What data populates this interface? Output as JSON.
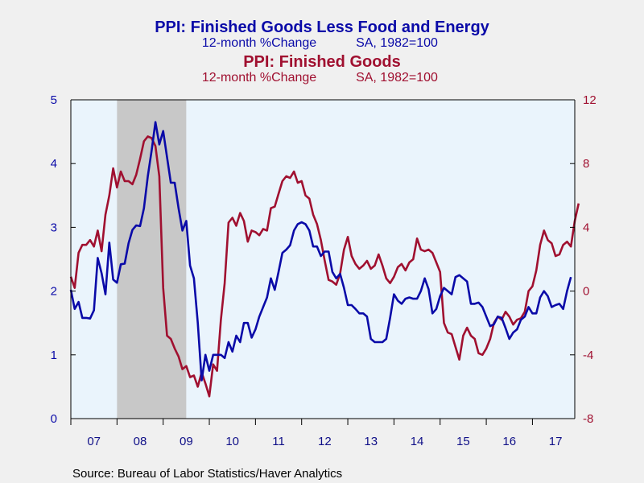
{
  "chart_data": {
    "type": "line",
    "titles": [
      {
        "title": "PPI: Finished Goods Less Food and Energy",
        "subtitle_left": "12-month %Change",
        "subtitle_right": "SA, 1982=100",
        "color": "#0a0aa8"
      },
      {
        "title": "PPI: Finished Goods",
        "subtitle_left": "12-month %Change",
        "subtitle_right": "SA, 1982=100",
        "color": "#a01030"
      }
    ],
    "source": "Source:  Bureau of Labor Statistics/Haver Analytics",
    "x_tick_labels": [
      "07",
      "08",
      "09",
      "10",
      "11",
      "12",
      "13",
      "14",
      "15",
      "16",
      "17"
    ],
    "x_range": [
      2007.0,
      2017.917
    ],
    "y_left": {
      "range": [
        0,
        5
      ],
      "ticks": [
        "0",
        "1",
        "2",
        "3",
        "4",
        "5"
      ],
      "color": "#0a0aa8"
    },
    "y_right": {
      "range": [
        -8,
        12
      ],
      "ticks": [
        "-8",
        "-4",
        "0",
        "4",
        "8",
        "12"
      ],
      "color": "#a01030"
    },
    "recession_shading": {
      "start": 2008.0,
      "end": 2009.5,
      "color": "#c8c8c8"
    },
    "plot_background": "#eaf4fc",
    "series": [
      {
        "name": "PPI: Finished Goods Less Food and Energy",
        "axis": "left",
        "color": "#0a0aa8",
        "start": 2007.0,
        "values": [
          2.02,
          1.72,
          1.83,
          1.58,
          1.58,
          1.57,
          1.7,
          2.52,
          2.28,
          1.95,
          2.76,
          2.18,
          2.13,
          2.42,
          2.43,
          2.75,
          2.96,
          3.03,
          3.02,
          3.3,
          3.8,
          4.2,
          4.65,
          4.3,
          4.51,
          4.1,
          3.7,
          3.7,
          3.3,
          2.95,
          3.1,
          2.4,
          2.2,
          1.5,
          0.6,
          1.0,
          0.75,
          1.0,
          1.0,
          1.0,
          0.95,
          1.2,
          1.05,
          1.3,
          1.2,
          1.5,
          1.5,
          1.27,
          1.4,
          1.6,
          1.75,
          1.9,
          2.2,
          2.02,
          2.3,
          2.6,
          2.65,
          2.72,
          2.95,
          3.05,
          3.08,
          3.05,
          2.95,
          2.7,
          2.7,
          2.55,
          2.62,
          2.62,
          2.3,
          2.2,
          2.27,
          2.05,
          1.78,
          1.78,
          1.72,
          1.65,
          1.65,
          1.6,
          1.25,
          1.2,
          1.2,
          1.2,
          1.25,
          1.58,
          1.95,
          1.85,
          1.8,
          1.88,
          1.9,
          1.88,
          1.88,
          2.0,
          2.2,
          2.03,
          1.65,
          1.72,
          1.92,
          2.05,
          2.0,
          1.95,
          2.22,
          2.25,
          2.2,
          2.15,
          1.8,
          1.8,
          1.82,
          1.75,
          1.6,
          1.45,
          1.48,
          1.6,
          1.58,
          1.42,
          1.25,
          1.35,
          1.4,
          1.55,
          1.6,
          1.75,
          1.65,
          1.65,
          1.9,
          2.0,
          1.92,
          1.75,
          1.78,
          1.8,
          1.72,
          2.0,
          2.22
        ]
      },
      {
        "name": "PPI: Finished Goods",
        "axis": "right",
        "color": "#a01030",
        "start": 2007.0,
        "values": [
          0.9,
          0.2,
          2.4,
          2.9,
          2.9,
          3.2,
          2.8,
          3.8,
          2.5,
          4.8,
          6.0,
          7.7,
          6.5,
          7.5,
          6.9,
          6.9,
          6.7,
          7.3,
          8.3,
          9.4,
          9.7,
          9.6,
          9.1,
          7.2,
          0.2,
          -2.8,
          -3.0,
          -3.6,
          -4.1,
          -4.9,
          -4.7,
          -5.4,
          -5.3,
          -6.0,
          -5.1,
          -5.8,
          -6.6,
          -4.6,
          -5.0,
          -1.8,
          0.5,
          4.3,
          4.6,
          4.1,
          4.9,
          4.4,
          3.1,
          3.8,
          3.7,
          3.5,
          3.9,
          3.8,
          5.2,
          5.3,
          6.1,
          6.9,
          7.2,
          7.1,
          7.5,
          6.8,
          6.9,
          6.0,
          5.8,
          4.8,
          4.2,
          3.2,
          1.9,
          0.7,
          0.6,
          0.4,
          1.1,
          2.6,
          3.4,
          2.2,
          1.7,
          1.4,
          1.6,
          1.9,
          1.4,
          1.6,
          2.3,
          1.6,
          0.8,
          0.5,
          0.9,
          1.5,
          1.7,
          1.3,
          1.8,
          2.0,
          3.3,
          2.6,
          2.5,
          2.6,
          2.4,
          1.8,
          1.2,
          -2.0,
          -2.6,
          -2.7,
          -3.5,
          -4.3,
          -2.8,
          -2.3,
          -2.8,
          -3.0,
          -3.9,
          -4.0,
          -3.6,
          -3.0,
          -2.0,
          -1.6,
          -1.8,
          -1.3,
          -1.6,
          -2.1,
          -1.8,
          -1.7,
          -1.3,
          0.0,
          0.3,
          1.3,
          2.9,
          3.8,
          3.2,
          3.0,
          2.2,
          2.3,
          2.9,
          3.1,
          2.8,
          4.4,
          5.5
        ]
      }
    ],
    "grid": false,
    "legend": "none"
  }
}
